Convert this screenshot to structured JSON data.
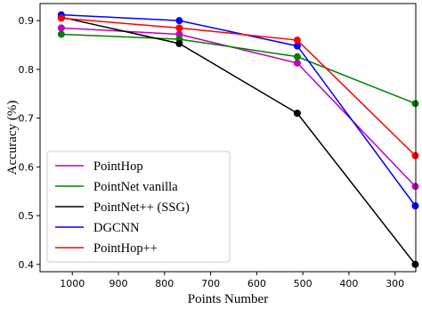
{
  "chart_data": {
    "type": "line",
    "xlabel": "Points Number",
    "ylabel": "Accuracy (%)",
    "x_inverted": true,
    "xlim": [
      1070,
      255
    ],
    "ylim": [
      0.385,
      0.935
    ],
    "x_ticks": [
      1000,
      900,
      800,
      700,
      600,
      500,
      400,
      300
    ],
    "y_ticks": [
      0.4,
      0.5,
      0.6,
      0.7,
      0.8,
      0.9
    ],
    "x": [
      1024,
      768,
      512,
      256
    ],
    "grid": false,
    "legend_position": "lower-left",
    "series": [
      {
        "name": "PointHop",
        "color": "#c000c0",
        "values": [
          0.885,
          0.872,
          0.813,
          0.56
        ]
      },
      {
        "name": "PointNet vanilla",
        "color": "#008000",
        "values": [
          0.872,
          0.862,
          0.826,
          0.73
        ]
      },
      {
        "name": "PointNet++ (SSG)",
        "color": "#000000",
        "values": [
          0.907,
          0.853,
          0.71,
          0.4
        ]
      },
      {
        "name": "DGCNN",
        "color": "#0000ff",
        "values": [
          0.912,
          0.9,
          0.848,
          0.52
        ]
      },
      {
        "name": "PointHop++",
        "color": "#ff0000",
        "values": [
          0.905,
          0.885,
          0.86,
          0.623
        ]
      }
    ]
  }
}
